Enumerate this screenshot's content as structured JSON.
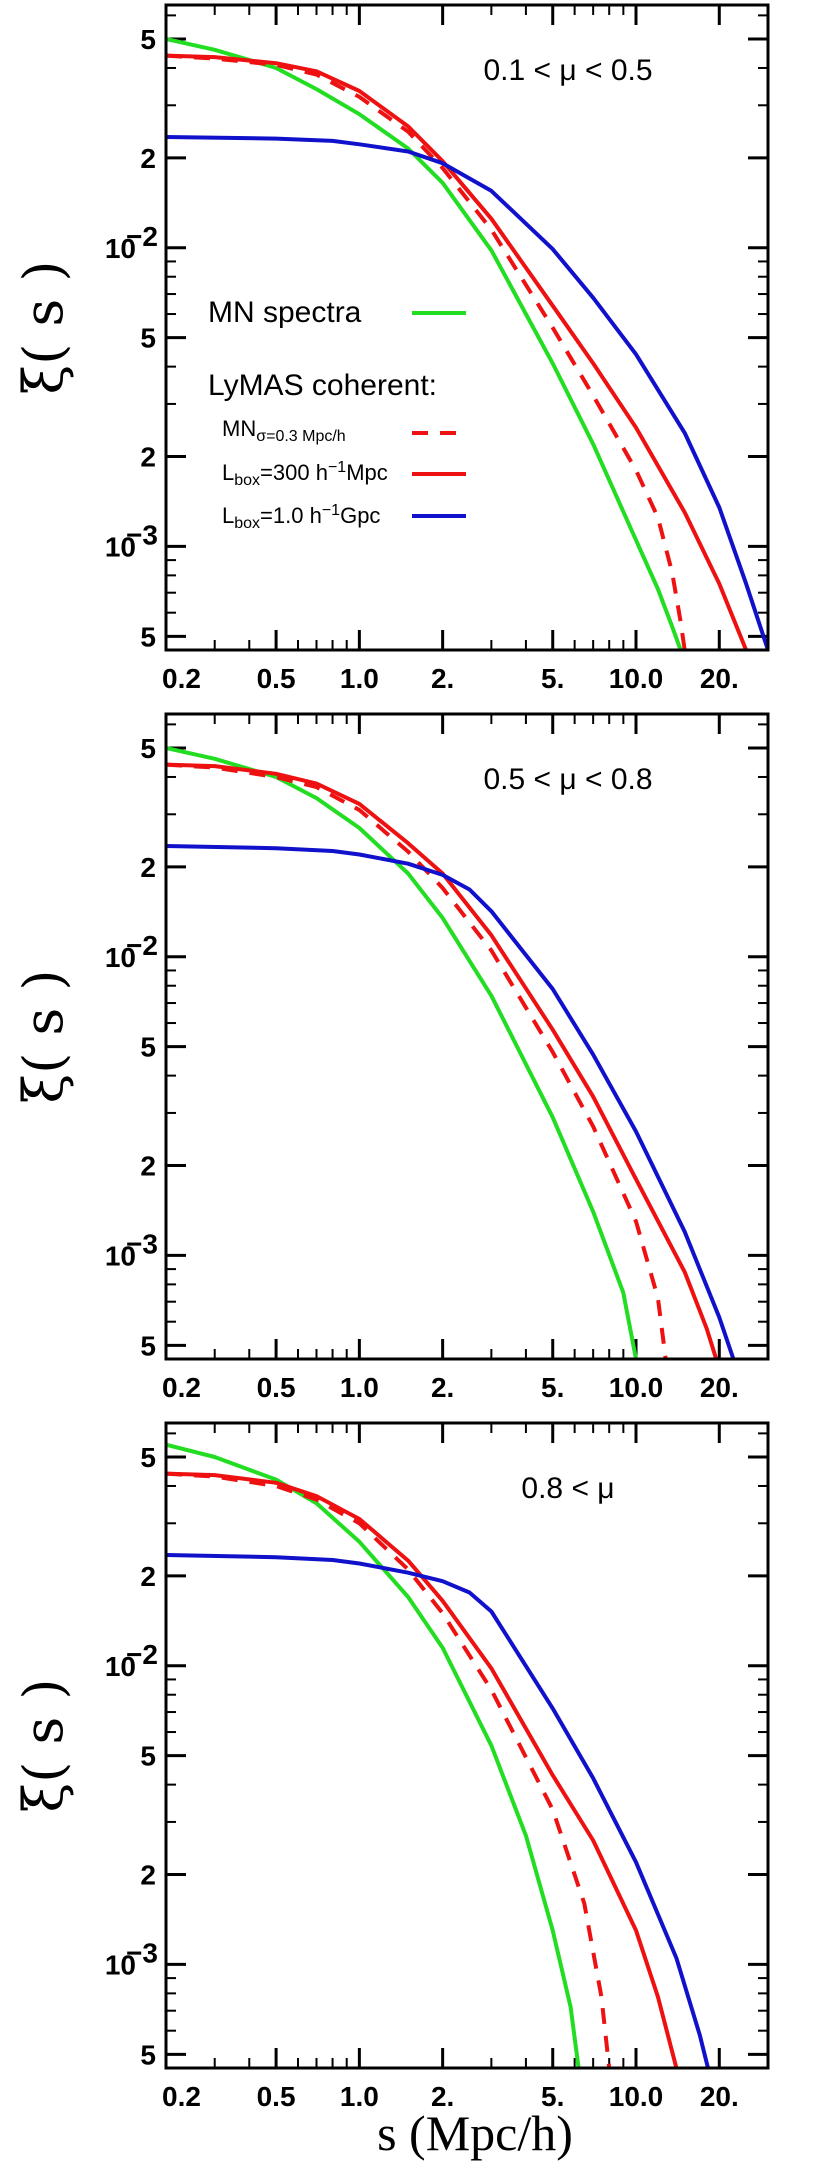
{
  "figure": {
    "ylabel_main": "ξ",
    "ylabel_arg": "( s )",
    "xlabel": "s (Mpc/h)"
  },
  "colors": {
    "green": "#22dd22",
    "red": "#ee1111",
    "blue": "#1111cc",
    "axis": "#000000"
  },
  "legend": {
    "spectra_label": "MN spectra",
    "coherent_label": "LyMAS coherent:",
    "mn_base": "MN",
    "mn_sub": "σ=0.3 Mpc/h",
    "lbox300_pre": "L",
    "lbox300_sub": "box",
    "lbox300_mid": "=300 h",
    "lbox300_sup": "−1",
    "lbox300_post": "Mpc",
    "lbox1_pre": "L",
    "lbox1_sub": "box",
    "lbox1_mid": "=1.0 h",
    "lbox1_sup": "−1",
    "lbox1_post": "Gpc"
  },
  "chart_data": [
    {
      "type": "line",
      "panel_label": "0.1 < μ < 0.5",
      "xscale": "log",
      "yscale": "log",
      "xlim": [
        0.2,
        30
      ],
      "ylim": [
        0.00045,
        0.065
      ],
      "xticks": [
        {
          "v": 0.2,
          "l": "0.2"
        },
        {
          "v": 0.5,
          "l": "0.5"
        },
        {
          "v": 1.0,
          "l": "1.0"
        },
        {
          "v": 2.0,
          "l": "2."
        },
        {
          "v": 5.0,
          "l": "5."
        },
        {
          "v": 10.0,
          "l": "10.0"
        },
        {
          "v": 20.0,
          "l": "20."
        }
      ],
      "yticks": [
        {
          "v": 0.05,
          "l": "5"
        },
        {
          "v": 0.02,
          "l": "2"
        },
        {
          "v": 0.01,
          "l": "10",
          "sup": "−2"
        },
        {
          "v": 0.005,
          "l": "5"
        },
        {
          "v": 0.002,
          "l": "2"
        },
        {
          "v": 0.001,
          "l": "10",
          "sup": "−3"
        },
        {
          "v": 0.0005,
          "l": "5"
        }
      ],
      "legend": true,
      "series": [
        {
          "key": "mn_spectra",
          "color": "green",
          "dash": false,
          "x": [
            0.2,
            0.3,
            0.5,
            0.7,
            1.0,
            1.5,
            2.0,
            3.0,
            5.0,
            7.0,
            10.0,
            12.0,
            13.5,
            14.5
          ],
          "y": [
            0.05,
            0.046,
            0.04,
            0.034,
            0.028,
            0.0215,
            0.0165,
            0.0098,
            0.0041,
            0.0022,
            0.00105,
            0.00072,
            0.00054,
            0.00045
          ]
        },
        {
          "key": "mn_sigma",
          "color": "red",
          "dash": true,
          "x": [
            0.2,
            0.3,
            0.5,
            0.7,
            1.0,
            1.5,
            2.0,
            3.0,
            5.0,
            7.0,
            10.0,
            12.0,
            13.5,
            14.5,
            15.0
          ],
          "y": [
            0.044,
            0.043,
            0.041,
            0.038,
            0.032,
            0.0245,
            0.0185,
            0.0115,
            0.0054,
            0.0032,
            0.0018,
            0.00125,
            0.00082,
            0.00056,
            0.00045
          ]
        },
        {
          "key": "lbox300",
          "color": "red",
          "dash": false,
          "x": [
            0.2,
            0.3,
            0.5,
            0.7,
            1.0,
            1.5,
            2.0,
            3.0,
            5.0,
            7.0,
            10.0,
            15.0,
            20.0,
            25.0
          ],
          "y": [
            0.044,
            0.0435,
            0.0415,
            0.039,
            0.0335,
            0.0255,
            0.0195,
            0.0125,
            0.0064,
            0.0041,
            0.0025,
            0.0013,
            0.00075,
            0.00045
          ]
        },
        {
          "key": "lbox1",
          "color": "blue",
          "dash": false,
          "x": [
            0.2,
            0.5,
            0.8,
            1.0,
            1.5,
            2.0,
            3.0,
            5.0,
            7.0,
            10.0,
            15.0,
            20.0,
            25.0,
            30.0
          ],
          "y": [
            0.0235,
            0.0232,
            0.0228,
            0.0222,
            0.021,
            0.0192,
            0.0155,
            0.0099,
            0.0068,
            0.0044,
            0.0024,
            0.00135,
            0.00075,
            0.00045
          ]
        }
      ]
    },
    {
      "type": "line",
      "panel_label": "0.5 < μ < 0.8",
      "xscale": "log",
      "yscale": "log",
      "xlim": [
        0.2,
        30
      ],
      "ylim": [
        0.00045,
        0.065
      ],
      "xticks": [
        {
          "v": 0.2,
          "l": "0.2"
        },
        {
          "v": 0.5,
          "l": "0.5"
        },
        {
          "v": 1.0,
          "l": "1.0"
        },
        {
          "v": 2.0,
          "l": "2."
        },
        {
          "v": 5.0,
          "l": "5."
        },
        {
          "v": 10.0,
          "l": "10.0"
        },
        {
          "v": 20.0,
          "l": "20."
        }
      ],
      "yticks": [
        {
          "v": 0.05,
          "l": "5"
        },
        {
          "v": 0.02,
          "l": "2"
        },
        {
          "v": 0.01,
          "l": "10",
          "sup": "−2"
        },
        {
          "v": 0.005,
          "l": "5"
        },
        {
          "v": 0.002,
          "l": "2"
        },
        {
          "v": 0.001,
          "l": "10",
          "sup": "−3"
        },
        {
          "v": 0.0005,
          "l": "5"
        }
      ],
      "legend": false,
      "series": [
        {
          "key": "mn_spectra",
          "color": "green",
          "dash": false,
          "x": [
            0.2,
            0.3,
            0.5,
            0.7,
            1.0,
            1.5,
            2.0,
            3.0,
            5.0,
            7.0,
            9.0,
            10.0
          ],
          "y": [
            0.05,
            0.046,
            0.04,
            0.034,
            0.027,
            0.019,
            0.0135,
            0.0074,
            0.0029,
            0.0014,
            0.00075,
            0.00045
          ]
        },
        {
          "key": "mn_sigma",
          "color": "red",
          "dash": true,
          "x": [
            0.2,
            0.3,
            0.5,
            0.7,
            1.0,
            1.5,
            2.0,
            3.0,
            5.0,
            7.0,
            10.0,
            12.0,
            12.8
          ],
          "y": [
            0.044,
            0.043,
            0.04,
            0.037,
            0.031,
            0.0225,
            0.017,
            0.0105,
            0.0048,
            0.0027,
            0.0013,
            0.00072,
            0.00045
          ]
        },
        {
          "key": "lbox300",
          "color": "red",
          "dash": false,
          "x": [
            0.2,
            0.3,
            0.5,
            0.7,
            1.0,
            1.5,
            2.0,
            3.0,
            5.0,
            7.0,
            10.0,
            15.0,
            18.0,
            19.5
          ],
          "y": [
            0.044,
            0.0435,
            0.041,
            0.038,
            0.0325,
            0.024,
            0.019,
            0.0118,
            0.0057,
            0.0034,
            0.0018,
            0.00088,
            0.00057,
            0.00045
          ]
        },
        {
          "key": "lbox1",
          "color": "blue",
          "dash": false,
          "x": [
            0.2,
            0.5,
            0.8,
            1.0,
            1.5,
            2.0,
            2.5,
            3.0,
            5.0,
            7.0,
            10.0,
            15.0,
            20.0,
            22.5
          ],
          "y": [
            0.0235,
            0.0231,
            0.0226,
            0.022,
            0.0205,
            0.0188,
            0.0168,
            0.0142,
            0.0078,
            0.0047,
            0.0026,
            0.0012,
            0.00062,
            0.00045
          ]
        }
      ]
    },
    {
      "type": "line",
      "panel_label": "0.8 < μ",
      "xscale": "log",
      "yscale": "log",
      "xlim": [
        0.2,
        30
      ],
      "ylim": [
        0.00045,
        0.065
      ],
      "xticks": [
        {
          "v": 0.2,
          "l": "0.2"
        },
        {
          "v": 0.5,
          "l": "0.5"
        },
        {
          "v": 1.0,
          "l": "1.0"
        },
        {
          "v": 2.0,
          "l": "2."
        },
        {
          "v": 5.0,
          "l": "5."
        },
        {
          "v": 10.0,
          "l": "10.0"
        },
        {
          "v": 20.0,
          "l": "20."
        }
      ],
      "yticks": [
        {
          "v": 0.05,
          "l": "5"
        },
        {
          "v": 0.02,
          "l": "2"
        },
        {
          "v": 0.01,
          "l": "10",
          "sup": "−2"
        },
        {
          "v": 0.005,
          "l": "5"
        },
        {
          "v": 0.002,
          "l": "2"
        },
        {
          "v": 0.001,
          "l": "10",
          "sup": "−3"
        },
        {
          "v": 0.0005,
          "l": "5"
        }
      ],
      "legend": false,
      "series": [
        {
          "key": "mn_spectra",
          "color": "green",
          "dash": false,
          "x": [
            0.2,
            0.3,
            0.5,
            0.7,
            1.0,
            1.5,
            2.0,
            3.0,
            4.0,
            5.0,
            5.8,
            6.2
          ],
          "y": [
            0.055,
            0.05,
            0.042,
            0.035,
            0.026,
            0.017,
            0.0115,
            0.0054,
            0.0027,
            0.0013,
            0.00072,
            0.00045
          ]
        },
        {
          "key": "mn_sigma",
          "color": "red",
          "dash": true,
          "x": [
            0.2,
            0.3,
            0.5,
            0.7,
            1.0,
            1.5,
            2.0,
            3.0,
            5.0,
            6.5,
            7.5,
            8.0
          ],
          "y": [
            0.044,
            0.043,
            0.04,
            0.036,
            0.03,
            0.021,
            0.015,
            0.0083,
            0.0033,
            0.0016,
            0.00078,
            0.00045
          ]
        },
        {
          "key": "lbox300",
          "color": "red",
          "dash": false,
          "x": [
            0.2,
            0.3,
            0.5,
            0.7,
            1.0,
            1.5,
            2.0,
            3.0,
            5.0,
            7.0,
            10.0,
            12.0,
            14.0
          ],
          "y": [
            0.044,
            0.0435,
            0.041,
            0.037,
            0.031,
            0.0225,
            0.0165,
            0.0098,
            0.0043,
            0.0026,
            0.0013,
            0.00078,
            0.00045
          ]
        },
        {
          "key": "lbox1",
          "color": "blue",
          "dash": false,
          "x": [
            0.2,
            0.5,
            0.8,
            1.0,
            1.5,
            2.0,
            2.5,
            3.0,
            5.0,
            7.0,
            10.0,
            14.0,
            17.0,
            18.2
          ],
          "y": [
            0.0235,
            0.0231,
            0.0226,
            0.022,
            0.0205,
            0.0192,
            0.0176,
            0.0152,
            0.0072,
            0.0042,
            0.0022,
            0.00105,
            0.00058,
            0.00045
          ]
        }
      ]
    }
  ]
}
